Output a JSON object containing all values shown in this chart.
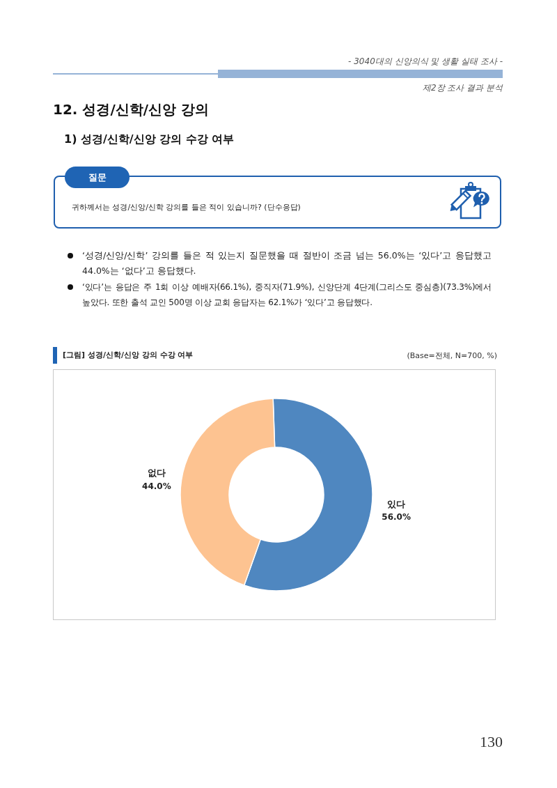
{
  "chart_data": {
    "type": "donut",
    "title": "[그림] 성경/신학/신앙 강의 수강 여부",
    "subtitle": "(Base=전체, N=700, %)",
    "categories": [
      "있다",
      "없다"
    ],
    "values": [
      56.0,
      44.0
    ],
    "value_labels": [
      "56.0%",
      "44.0%"
    ],
    "colors": [
      "#4f87c0",
      "#fdc391"
    ],
    "annotations": [
      "- 3040대의 신앙의식 및 생활 실태 조사 -",
      "제2장 조사 결과 분석",
      "12. 성경/신학/신앙 강의",
      "1) 성경/신학/신앙 강의 수강 여부",
      "질문",
      "귀하께서는 성경/신앙/신학 강의를 들은 적이 있습니까? (단수응답)",
      "‘성경/신앙/신학’ 강의를 들은 적 있는지 질문했을 때 절반이 조금 넘는 56.0%는 ‘있다’고 응답했고 44.0%는 ‘없다’고 응답했다.",
      "‘있다’는 응답은 주 1회 이상 예배자(66.1%), 중직자(71.9%), 신앙단계 4단계(그리스도 중심층)(73.3%)에서 높았다. 또한 출석 교인 500명 이상 교회 응답자는 62.1%가 ‘있다’고 응답했다.",
      "130"
    ]
  }
}
